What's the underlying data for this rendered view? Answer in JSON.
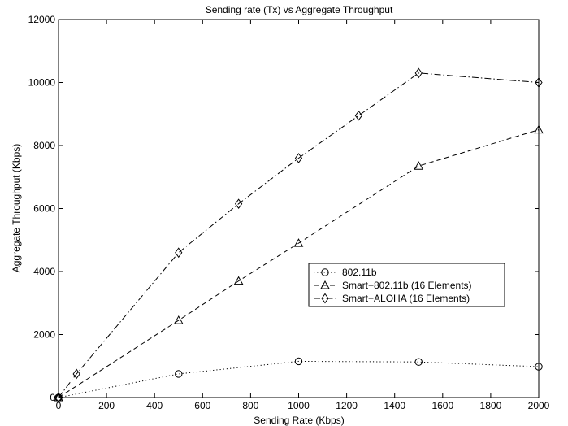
{
  "chart_data": {
    "type": "line",
    "title": "Sending rate (Tx) vs Aggregate Throughput",
    "xlabel": "Sending Rate (Kbps)",
    "ylabel": "Aggregate Throughput (Kbps)",
    "xlim": [
      0,
      2000
    ],
    "ylim": [
      0,
      12000
    ],
    "xticks": [
      0,
      200,
      400,
      600,
      800,
      1000,
      1200,
      1400,
      1600,
      1800,
      2000
    ],
    "yticks": [
      0,
      2000,
      4000,
      6000,
      8000,
      10000,
      12000
    ],
    "grid": false,
    "legend_position": "center-right",
    "series": [
      {
        "name": "802.11b",
        "marker": "circle",
        "line_style": "dotted",
        "x": [
          0,
          500,
          1000,
          1500,
          2000
        ],
        "y": [
          0,
          750,
          1150,
          1130,
          980
        ]
      },
      {
        "name": "Smart−802.11b (16 Elements)",
        "marker": "triangle",
        "line_style": "dashed",
        "x": [
          0,
          500,
          750,
          1000,
          1500,
          2000
        ],
        "y": [
          0,
          2450,
          3700,
          4900,
          7350,
          8500
        ]
      },
      {
        "name": "Smart−ALOHA (16 Elements)",
        "marker": "diamond",
        "line_style": "dashdot",
        "x": [
          0,
          75,
          500,
          750,
          1000,
          1250,
          1500,
          2000
        ],
        "y": [
          0,
          750,
          4600,
          6150,
          7600,
          8950,
          10300,
          10000
        ]
      }
    ]
  }
}
